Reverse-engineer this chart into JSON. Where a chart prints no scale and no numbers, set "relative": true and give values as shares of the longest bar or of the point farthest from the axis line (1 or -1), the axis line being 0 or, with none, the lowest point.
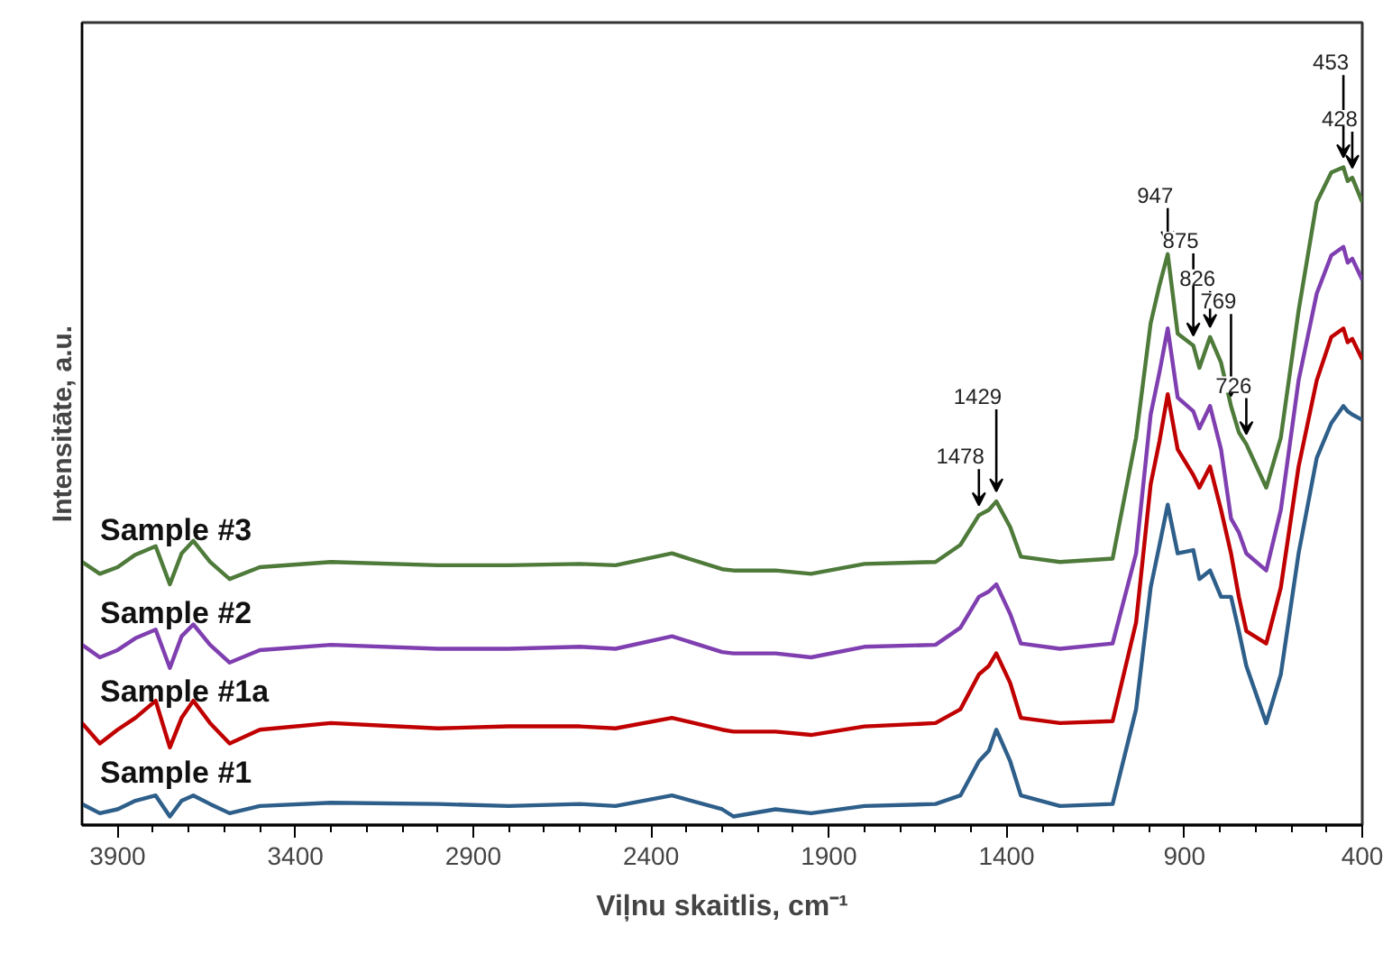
{
  "chart_data": {
    "type": "line",
    "relative": true,
    "xlabel": "Viļnu skaitlis, cm⁻¹",
    "ylabel": "Intensitāte, a.u.",
    "xlim": [
      4000,
      400
    ],
    "xticks": [
      3900,
      {
        "value": 3800,
        "label": null
      },
      {
        "value": 3700,
        "label": null
      },
      {
        "value": 3600,
        "label": null
      },
      {
        "value": 3500,
        "label": null
      },
      3400,
      {
        "value": 3300,
        "label": null
      },
      {
        "value": 3200,
        "label": null
      },
      {
        "value": 3100,
        "label": null
      },
      {
        "value": 3000,
        "label": null
      },
      2900,
      {
        "value": 2800,
        "label": null
      },
      {
        "value": 2700,
        "label": null
      },
      {
        "value": 2600,
        "label": null
      },
      {
        "value": 2500,
        "label": null
      },
      2400,
      {
        "value": 2300,
        "label": null
      },
      {
        "value": 2200,
        "label": null
      },
      {
        "value": 2100,
        "label": null
      },
      {
        "value": 2000,
        "label": null
      },
      1900,
      {
        "value": 1800,
        "label": null
      },
      {
        "value": 1700,
        "label": null
      },
      {
        "value": 1600,
        "label": null
      },
      {
        "value": 1500,
        "label": null
      },
      1400,
      {
        "value": 1300,
        "label": null
      },
      {
        "value": 1200,
        "label": null
      },
      {
        "value": 1100,
        "label": null
      },
      {
        "value": 1000,
        "label": null
      },
      900,
      {
        "value": 800,
        "label": null
      },
      {
        "value": 700,
        "label": null
      },
      {
        "value": 600,
        "label": null
      },
      {
        "value": 500,
        "label": null
      },
      400
    ],
    "grid": false,
    "legend": false,
    "marker": "none",
    "line_style": "solid",
    "x": [
      4000,
      3950,
      3900,
      3850,
      3793,
      3753,
      3720,
      3687,
      3640,
      3585,
      3500,
      3300,
      3000,
      2800,
      2600,
      2500,
      2341,
      2200,
      2168,
      2050,
      1950,
      1800,
      1600,
      1530,
      1478,
      1450,
      1429,
      1390,
      1360,
      1250,
      1102,
      1036,
      995,
      970,
      947,
      919,
      875,
      858,
      828,
      797,
      769,
      747,
      726,
      670,
      629,
      579,
      528,
      487,
      453,
      441,
      428,
      400
    ],
    "series": [
      {
        "name": "Sample #1",
        "color": "#2e5f8a",
        "values": [
          0.032,
          0.018,
          0.024,
          0.037,
          0.045,
          0.013,
          0.037,
          0.045,
          0.032,
          0.018,
          0.029,
          0.034,
          0.032,
          0.029,
          0.032,
          0.029,
          0.045,
          0.024,
          0.013,
          0.024,
          0.018,
          0.029,
          0.032,
          0.045,
          0.097,
          0.113,
          0.145,
          0.097,
          0.045,
          0.029,
          0.032,
          0.176,
          0.361,
          0.426,
          0.487,
          0.413,
          0.418,
          0.374,
          0.387,
          0.347,
          0.347,
          0.295,
          0.242,
          0.155,
          0.229,
          0.413,
          0.558,
          0.611,
          0.637,
          0.629,
          0.624,
          0.616
        ]
      },
      {
        "name": "Sample #1a",
        "color": "#c00000",
        "values": [
          0.155,
          0.124,
          0.145,
          0.163,
          0.189,
          0.118,
          0.163,
          0.189,
          0.155,
          0.124,
          0.145,
          0.155,
          0.147,
          0.15,
          0.15,
          0.147,
          0.163,
          0.145,
          0.142,
          0.142,
          0.137,
          0.15,
          0.155,
          0.176,
          0.229,
          0.242,
          0.261,
          0.216,
          0.163,
          0.155,
          0.158,
          0.308,
          0.518,
          0.584,
          0.655,
          0.571,
          0.532,
          0.513,
          0.545,
          0.479,
          0.413,
          0.347,
          0.295,
          0.276,
          0.361,
          0.545,
          0.676,
          0.742,
          0.755,
          0.734,
          0.739,
          0.708
        ]
      },
      {
        "name": "Sample #2",
        "color": "#7f3fb0",
        "values": [
          0.274,
          0.255,
          0.266,
          0.284,
          0.297,
          0.239,
          0.287,
          0.305,
          0.274,
          0.247,
          0.266,
          0.274,
          0.268,
          0.268,
          0.271,
          0.268,
          0.287,
          0.263,
          0.261,
          0.261,
          0.255,
          0.271,
          0.274,
          0.3,
          0.347,
          0.355,
          0.366,
          0.321,
          0.276,
          0.268,
          0.276,
          0.413,
          0.624,
          0.689,
          0.755,
          0.65,
          0.629,
          0.603,
          0.637,
          0.571,
          0.466,
          0.445,
          0.413,
          0.387,
          0.479,
          0.676,
          0.808,
          0.866,
          0.879,
          0.855,
          0.861,
          0.829
        ]
      },
      {
        "name": "Sample #3",
        "color": "#4e7a3a",
        "values": [
          0.4,
          0.382,
          0.392,
          0.411,
          0.424,
          0.366,
          0.413,
          0.432,
          0.4,
          0.374,
          0.392,
          0.4,
          0.395,
          0.395,
          0.397,
          0.395,
          0.413,
          0.389,
          0.387,
          0.387,
          0.382,
          0.397,
          0.4,
          0.426,
          0.471,
          0.479,
          0.492,
          0.453,
          0.408,
          0.4,
          0.405,
          0.589,
          0.763,
          0.821,
          0.868,
          0.747,
          0.729,
          0.695,
          0.742,
          0.703,
          0.637,
          0.597,
          0.579,
          0.513,
          0.589,
          0.782,
          0.947,
          0.992,
          1.0,
          0.979,
          0.984,
          0.947
        ]
      }
    ],
    "annotations": [
      {
        "text": "1478",
        "x": 1478,
        "y": 0.471
      },
      {
        "text": "1429",
        "x": 1429,
        "y": 0.492
      },
      {
        "text": "947",
        "x": 947,
        "y": 0.868
      },
      {
        "text": "875",
        "x": 875,
        "y": 0.729
      },
      {
        "text": "826",
        "x": 828,
        "y": 0.742
      },
      {
        "text": "769",
        "x": 769,
        "y": 0.637
      },
      {
        "text": "726",
        "x": 726,
        "y": 0.579
      },
      {
        "text": "453",
        "x": 453,
        "y": 1.0
      },
      {
        "text": "428",
        "x": 428,
        "y": 0.984
      }
    ]
  }
}
